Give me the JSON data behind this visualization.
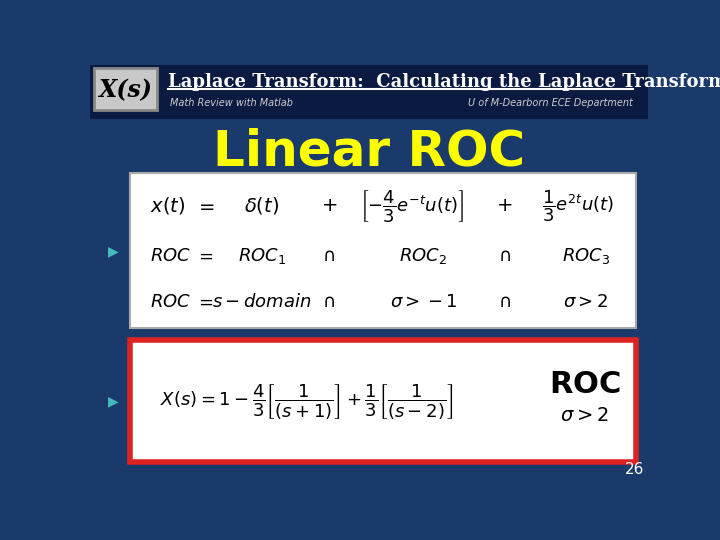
{
  "bg_color": "#1a3a6b",
  "header_bg": "#0a1a40",
  "title_text": "Laplace Transform:  Calculating the Laplace Transform",
  "title_color": "#ffffff",
  "subtitle_left": "Math Review with Matlab",
  "subtitle_right": "U of M-Dearborn ECE Department",
  "subtitle_color": "#cccccc",
  "xs_label": "X(s)",
  "xs_bg": "#c8c8c8",
  "xs_color": "#000000",
  "main_title": "Linear ROC",
  "main_title_color": "#ffff00",
  "box1_bg": "#ffffff",
  "box1_border": "#aaaaaa",
  "box2_bg": "#ffffff",
  "box2_border": "#dd2222",
  "page_number": "26",
  "page_color": "#ffffff",
  "speaker_color": "#44bbbb"
}
